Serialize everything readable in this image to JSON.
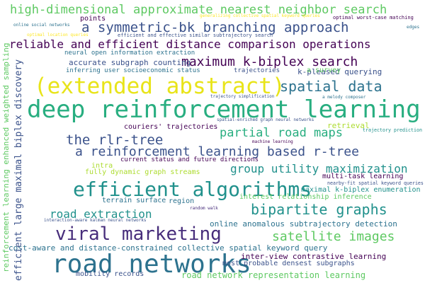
{
  "colors": {
    "background": "#ffffff",
    "palette": [
      "#3b528b",
      "#21918c",
      "#5ec962",
      "#fde725",
      "#440154",
      "#2c728e",
      "#28ae80",
      "#addc30",
      "#472d7b"
    ]
  },
  "words": [
    {
      "text": "deep reinforcement learning",
      "color": "#28ae80"
    },
    {
      "text": "road networks",
      "color": "#2c728e"
    },
    {
      "text": "(extended abstract)",
      "color": "#e8e419"
    },
    {
      "text": "efficient algorithms",
      "color": "#21918c"
    },
    {
      "text": "viral marketing",
      "color": "#472d7b"
    },
    {
      "text": "high-dimensional approximate nearest neighbor search",
      "color": "#5ec962"
    },
    {
      "text": "a symmetric-bk branching approach",
      "color": "#3b528b"
    },
    {
      "text": "reliable and efficient distance comparison operations",
      "color": "#440154"
    },
    {
      "text": "maximum k-biplex search",
      "color": "#440154"
    },
    {
      "text": "spatial data",
      "color": "#2c728e"
    },
    {
      "text": "the rlr-tree",
      "color": "#3b528b"
    },
    {
      "text": "partial road maps",
      "color": "#28ae80"
    },
    {
      "text": "a reinforcement learning based r-tree",
      "color": "#3b528b"
    },
    {
      "text": "group utility maximization",
      "color": "#21918c"
    },
    {
      "text": "bipartite graphs",
      "color": "#21918c"
    },
    {
      "text": "road extraction",
      "color": "#21918c"
    },
    {
      "text": "satellite images",
      "color": "#5ec962"
    },
    {
      "text": "cost-aware and distance-constrained collective spatial keyword query",
      "color": "#2c728e"
    },
    {
      "text": "efficient large maximal biplex discovery",
      "color": "#3b528b"
    },
    {
      "text": "reinforcement learning enhanced weighted sampling",
      "color": "#5ec962"
    },
    {
      "text": "online anomalous subtrajectory detection",
      "color": "#2c728e"
    },
    {
      "text": "inter-view contrastive learning",
      "color": "#440154"
    },
    {
      "text": "most probable densest subgraphs",
      "color": "#3b528b"
    },
    {
      "text": "road network representation learning",
      "color": "#5ec962"
    },
    {
      "text": "mobility records",
      "color": "#3b528b"
    },
    {
      "text": "accurate subgraph counting",
      "color": "#3b528b"
    },
    {
      "text": "inferring user socioeconomic status",
      "color": "#2c728e"
    },
    {
      "text": "k-pleased querying",
      "color": "#3b528b"
    },
    {
      "text": "couriers' trajectories",
      "color": "#440154"
    },
    {
      "text": "current status and future directions",
      "color": "#440154"
    },
    {
      "text": "fully dynamic graph streams",
      "color": "#addc30"
    },
    {
      "text": "terrain surface",
      "color": "#2c728e"
    },
    {
      "text": "region",
      "color": "#2c728e"
    },
    {
      "text": "interest relationship inference",
      "color": "#5ec962"
    },
    {
      "text": "maximal k-biplex enumeration",
      "color": "#21918c"
    },
    {
      "text": "multi-task learning",
      "color": "#440154"
    },
    {
      "text": "nearby-fit spatial keyword queries",
      "color": "#3b528b"
    },
    {
      "text": "retrieval",
      "color": "#addc30"
    },
    {
      "text": "trajectory prediction",
      "color": "#21918c"
    },
    {
      "text": "neural open information extraction",
      "color": "#2c728e"
    },
    {
      "text": "a survey",
      "color": "#5ec962"
    },
    {
      "text": "trajectories",
      "color": "#3b528b"
    },
    {
      "text": "points",
      "color": "#440154"
    },
    {
      "text": "generalizing collective spatial keyword queries",
      "color": "#fde725"
    },
    {
      "text": "optimal worst-case matching",
      "color": "#440154"
    },
    {
      "text": "online social networks",
      "color": "#2c728e"
    },
    {
      "text": "optimal location queries",
      "color": "#fde725"
    },
    {
      "text": "efficient and effective similar subtrajectory search",
      "color": "#3b528b"
    },
    {
      "text": "edges",
      "color": "#2c728e"
    },
    {
      "text": "intra",
      "color": "#addc30"
    },
    {
      "text": "machine learning",
      "color": "#440154"
    },
    {
      "text": "spatial-enriched graph neural networks",
      "color": "#3b528b"
    },
    {
      "text": "a melody composer",
      "color": "#2c728e"
    },
    {
      "text": "trajectory simplification",
      "color": "#3b528b"
    },
    {
      "text": "random walk",
      "color": "#472d7b"
    },
    {
      "text": "interaction-aware kalman neural networks",
      "color": "#3b528b"
    }
  ]
}
